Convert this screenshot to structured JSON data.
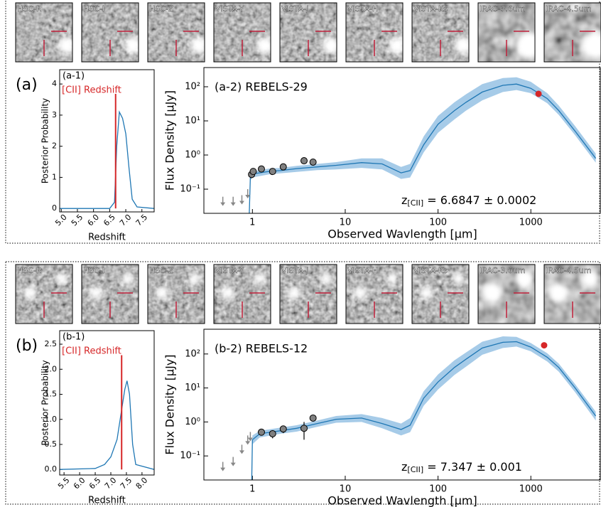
{
  "panels": [
    {
      "label": "(a)",
      "thumbnails": [
        "HSC-R",
        "HSC-I",
        "HSC-Z",
        "VISTA-Y",
        "VISTA-J",
        "VISTA-H",
        "VISTA-Ks",
        "IRAC-3.6um",
        "IRAC-4.5um"
      ],
      "posterior": {
        "type": "line",
        "title": "(a-1)",
        "annotation": "[CII] Redshift",
        "xlabel": "Redshift",
        "ylabel": "Posterior Probability",
        "x": [
          4.95,
          6.5,
          6.65,
          6.72,
          6.8,
          6.9,
          7.0,
          7.1,
          7.2,
          7.35,
          7.88
        ],
        "y": [
          0,
          0,
          0.2,
          2.0,
          3.1,
          2.9,
          2.4,
          1.3,
          0.3,
          0.05,
          0
        ],
        "color": "#1f77b4",
        "cii_redshift": 6.6847,
        "cii_color": "#d62728",
        "xlim": [
          4.95,
          7.88
        ],
        "ylim": [
          -0.11,
          4.46
        ],
        "xticks": [
          {
            "value": 5,
            "label": "5.0"
          },
          5.5,
          {
            "value": 6,
            "label": "6.0"
          },
          6.5,
          {
            "value": 7,
            "label": "7.0"
          },
          7.5
        ],
        "yticks": [
          0,
          1,
          2,
          3,
          4
        ]
      },
      "sed": {
        "type": "sed",
        "title": "(a-2) REBELS-29",
        "xlabel": "Observed Wavlength [μm]",
        "ylabel": "Flux Density [μJy]",
        "xscale": "log",
        "yscale": "log",
        "xlim": [
          0.3,
          5700
        ],
        "ylim": [
          0.0196,
          365
        ],
        "xticks": [
          1,
          10,
          100,
          1000
        ],
        "yticks": [
          {
            "value": 0.1,
            "label": "10⁻¹"
          },
          {
            "value": 1,
            "label": "10⁰"
          },
          {
            "value": 10,
            "label": "10¹"
          },
          {
            "value": 100,
            "label": "10²"
          }
        ],
        "redshift_label": {
          "symbol": "z",
          "subscript": "[CII]",
          "text": " = 6.6847 ± 0.0002"
        },
        "model": {
          "color": "#1f77b4",
          "band_color": "#a6cbe8",
          "x": [
            0.92,
            0.95,
            1.0,
            1.5,
            2,
            3,
            5,
            8,
            15,
            25,
            40,
            50,
            70,
            100,
            150,
            200,
            300,
            500,
            700,
            1000,
            1500,
            2000,
            3000,
            5000
          ],
          "y": [
            0.012,
            0.22,
            0.28,
            0.33,
            0.35,
            0.4,
            0.45,
            0.5,
            0.6,
            0.55,
            0.3,
            0.35,
            2,
            8,
            20,
            35,
            70,
            110,
            120,
            90,
            45,
            20,
            5,
            0.8
          ],
          "lower": [
            0.012,
            0.18,
            0.22,
            0.27,
            0.29,
            0.32,
            0.36,
            0.38,
            0.42,
            0.38,
            0.2,
            0.22,
            1.2,
            4.5,
            11,
            20,
            40,
            70,
            80,
            65,
            33,
            15,
            3.8,
            0.6
          ],
          "upper": [
            0.012,
            0.26,
            0.33,
            0.4,
            0.42,
            0.48,
            0.55,
            0.62,
            0.8,
            0.8,
            0.45,
            0.55,
            3.5,
            14,
            35,
            60,
            120,
            180,
            190,
            140,
            65,
            28,
            7,
            1.1
          ]
        },
        "photometry": {
          "color": "#808080",
          "x": [
            0.98,
            1.02,
            1.25,
            1.65,
            2.15,
            3.6,
            4.5
          ],
          "y": [
            0.27,
            0.33,
            0.39,
            0.33,
            0.45,
            0.68,
            0.62
          ],
          "yerr": [
            0.06,
            0.05,
            0.04,
            0.04,
            0.05,
            0.06,
            0.07
          ]
        },
        "upper_limits": {
          "color": "#888888",
          "x": [
            0.48,
            0.62,
            0.77,
            0.89
          ],
          "y": [
            0.045,
            0.045,
            0.05,
            0.075
          ]
        },
        "alma": {
          "color": "#d62728",
          "x": [
            1210
          ],
          "y": [
            62
          ],
          "yerr": [
            10
          ]
        }
      }
    },
    {
      "label": "(b)",
      "thumbnails": [
        "HSC-R",
        "HSC-I",
        "HSC-Z",
        "VISTA-Y",
        "VISTA-J",
        "VISTA-H",
        "VISTA-Ks",
        "IRAC-3.6um",
        "IRAC-4.5um"
      ],
      "posterior": {
        "type": "line",
        "title": "(b-1)",
        "annotation": "[CII] Redshift",
        "xlabel": "Redshift",
        "ylabel": "Posterior Probability",
        "x": [
          5.36,
          6.5,
          6.8,
          7.0,
          7.2,
          7.35,
          7.45,
          7.52,
          7.6,
          7.7,
          7.8,
          8.39
        ],
        "y": [
          0,
          0.02,
          0.1,
          0.25,
          0.6,
          1.2,
          1.6,
          1.77,
          1.5,
          0.5,
          0.1,
          0
        ],
        "color": "#1f77b4",
        "cii_redshift": 7.347,
        "cii_color": "#d62728",
        "xlim": [
          5.36,
          8.39
        ],
        "ylim": [
          -0.11,
          2.77
        ],
        "xticks": [
          5.5,
          {
            "value": 6,
            "label": "6.0"
          },
          6.5,
          {
            "value": 7,
            "label": "7.0"
          },
          7.5,
          {
            "value": 8,
            "label": "8.0"
          }
        ],
        "yticks": [
          {
            "value": 0,
            "label": "0.0"
          },
          0.5,
          {
            "value": 1,
            "label": "1.0"
          },
          1.5,
          {
            "value": 2,
            "label": "2.0"
          },
          2.5
        ]
      },
      "sed": {
        "type": "sed",
        "title": "(b-2) REBELS-12",
        "xlabel": "Observed Wavlength [μm]",
        "ylabel": "Flux Density [μJy]",
        "xscale": "log",
        "yscale": "log",
        "xlim": [
          0.3,
          5700
        ],
        "ylim": [
          0.0196,
          535
        ],
        "xticks": [
          1,
          10,
          100,
          1000
        ],
        "yticks": [
          {
            "value": 0.1,
            "label": "10⁻¹"
          },
          {
            "value": 1,
            "label": "10⁰"
          },
          {
            "value": 10,
            "label": "10¹"
          },
          {
            "value": 100,
            "label": "10²"
          }
        ],
        "redshift_label": {
          "symbol": "z",
          "subscript": "[CII]",
          "text": " = 7.347 ± 0.001"
        },
        "model": {
          "color": "#1f77b4",
          "band_color": "#a6cbe8",
          "x": [
            0.98,
            1.0,
            1.2,
            2,
            3,
            5,
            8,
            15,
            25,
            40,
            50,
            70,
            100,
            150,
            200,
            300,
            500,
            700,
            1000,
            1500,
            2000,
            3000,
            5000
          ],
          "y": [
            0.012,
            0.3,
            0.45,
            0.55,
            0.65,
            0.9,
            1.2,
            1.3,
            0.9,
            0.6,
            0.8,
            5,
            15,
            40,
            70,
            150,
            220,
            230,
            160,
            80,
            40,
            10,
            1.5
          ],
          "lower": [
            0.012,
            0.22,
            0.35,
            0.45,
            0.52,
            0.72,
            0.95,
            1.0,
            0.65,
            0.4,
            0.5,
            3,
            9,
            24,
            42,
            95,
            150,
            165,
            120,
            60,
            30,
            7.5,
            1.1
          ],
          "upper": [
            0.012,
            0.4,
            0.55,
            0.68,
            0.8,
            1.1,
            1.5,
            1.7,
            1.3,
            0.9,
            1.3,
            8,
            25,
            65,
            110,
            230,
            330,
            320,
            210,
            105,
            52,
            13,
            2
          ]
        },
        "photometry": {
          "color": "#808080",
          "x": [
            1.25,
            1.65,
            2.15,
            3.6,
            4.5
          ],
          "y": [
            0.5,
            0.45,
            0.62,
            0.65,
            1.3
          ],
          "yerr": [
            0.08,
            0.12,
            0.15,
            0.35,
            0.2
          ]
        },
        "upper_limits": {
          "color": "#888888",
          "x": [
            0.48,
            0.62,
            0.77,
            0.89,
            0.95
          ],
          "y": [
            0.05,
            0.07,
            0.16,
            0.3,
            0.38
          ]
        },
        "alma": {
          "color": "#d62728",
          "x": [
            1390
          ],
          "y": [
            180
          ],
          "yerr": [
            25
          ]
        }
      }
    }
  ]
}
